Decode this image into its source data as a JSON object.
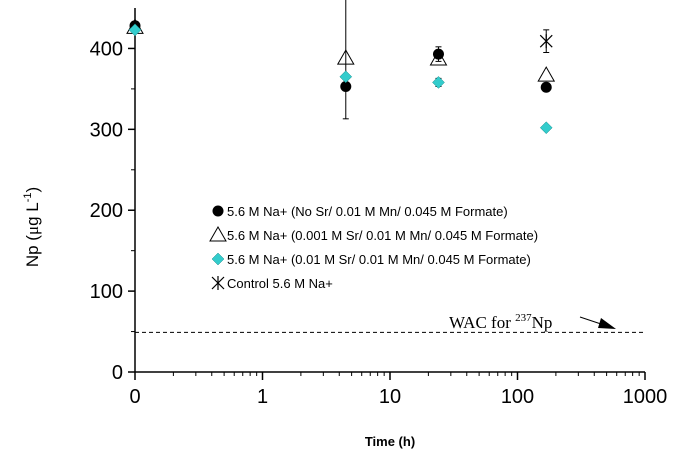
{
  "chart_data": {
    "type": "scatter",
    "xlabel": "Time (h)",
    "ylabel_main": "Np (",
    "ylabel_mu": "μ",
    "ylabel_rest": "g L",
    "ylabel_sup": "-1",
    "ylabel_close": ")",
    "x_scale": "log, with 0 shown at origin",
    "xlim": [
      0,
      1000
    ],
    "ylim": [
      0,
      450
    ],
    "x_ticks": [
      "0",
      "1",
      "10",
      "100",
      "1000"
    ],
    "y_ticks": [
      "0",
      "100",
      "200",
      "300",
      "400"
    ],
    "grid": false,
    "legend_position": "center",
    "reference_line": {
      "y": 49,
      "style": "dashed",
      "label_prefix": "WAC for ",
      "label_sup": "237",
      "label_suffix": "Np"
    },
    "series": [
      {
        "name": "5.6 M Na+ (No Sr/ 0.01 M Mn/ 0.045 M Formate)",
        "marker": "filled-circle",
        "color": "#000000",
        "x": [
          0,
          4.5,
          24,
          168
        ],
        "y": [
          428,
          353,
          393,
          352
        ],
        "err": [
          4,
          0,
          9,
          0
        ]
      },
      {
        "name": "5.6 M Na+ (0.001 M Sr/ 0.01 M Mn/ 0.045 M Formate)",
        "marker": "open-triangle",
        "color": "#000000",
        "x": [
          0,
          4.5,
          24,
          168
        ],
        "y": [
          426,
          388,
          387,
          367
        ],
        "err": [
          0,
          75,
          0,
          0
        ]
      },
      {
        "name": "5.6 M Na+ (0.01 M Sr/ 0.01 M Mn/ 0.045 M Formate)",
        "marker": "diamond",
        "color": "#33cccc",
        "x": [
          0,
          4.5,
          24,
          168
        ],
        "y": [
          423,
          365,
          358,
          302
        ],
        "err": [
          0,
          0,
          5,
          0
        ]
      },
      {
        "name": "Control 5.6 M Na+",
        "marker": "asterisk",
        "color": "#000000",
        "x": [
          168
        ],
        "y": [
          409
        ],
        "err": [
          14
        ]
      }
    ]
  }
}
